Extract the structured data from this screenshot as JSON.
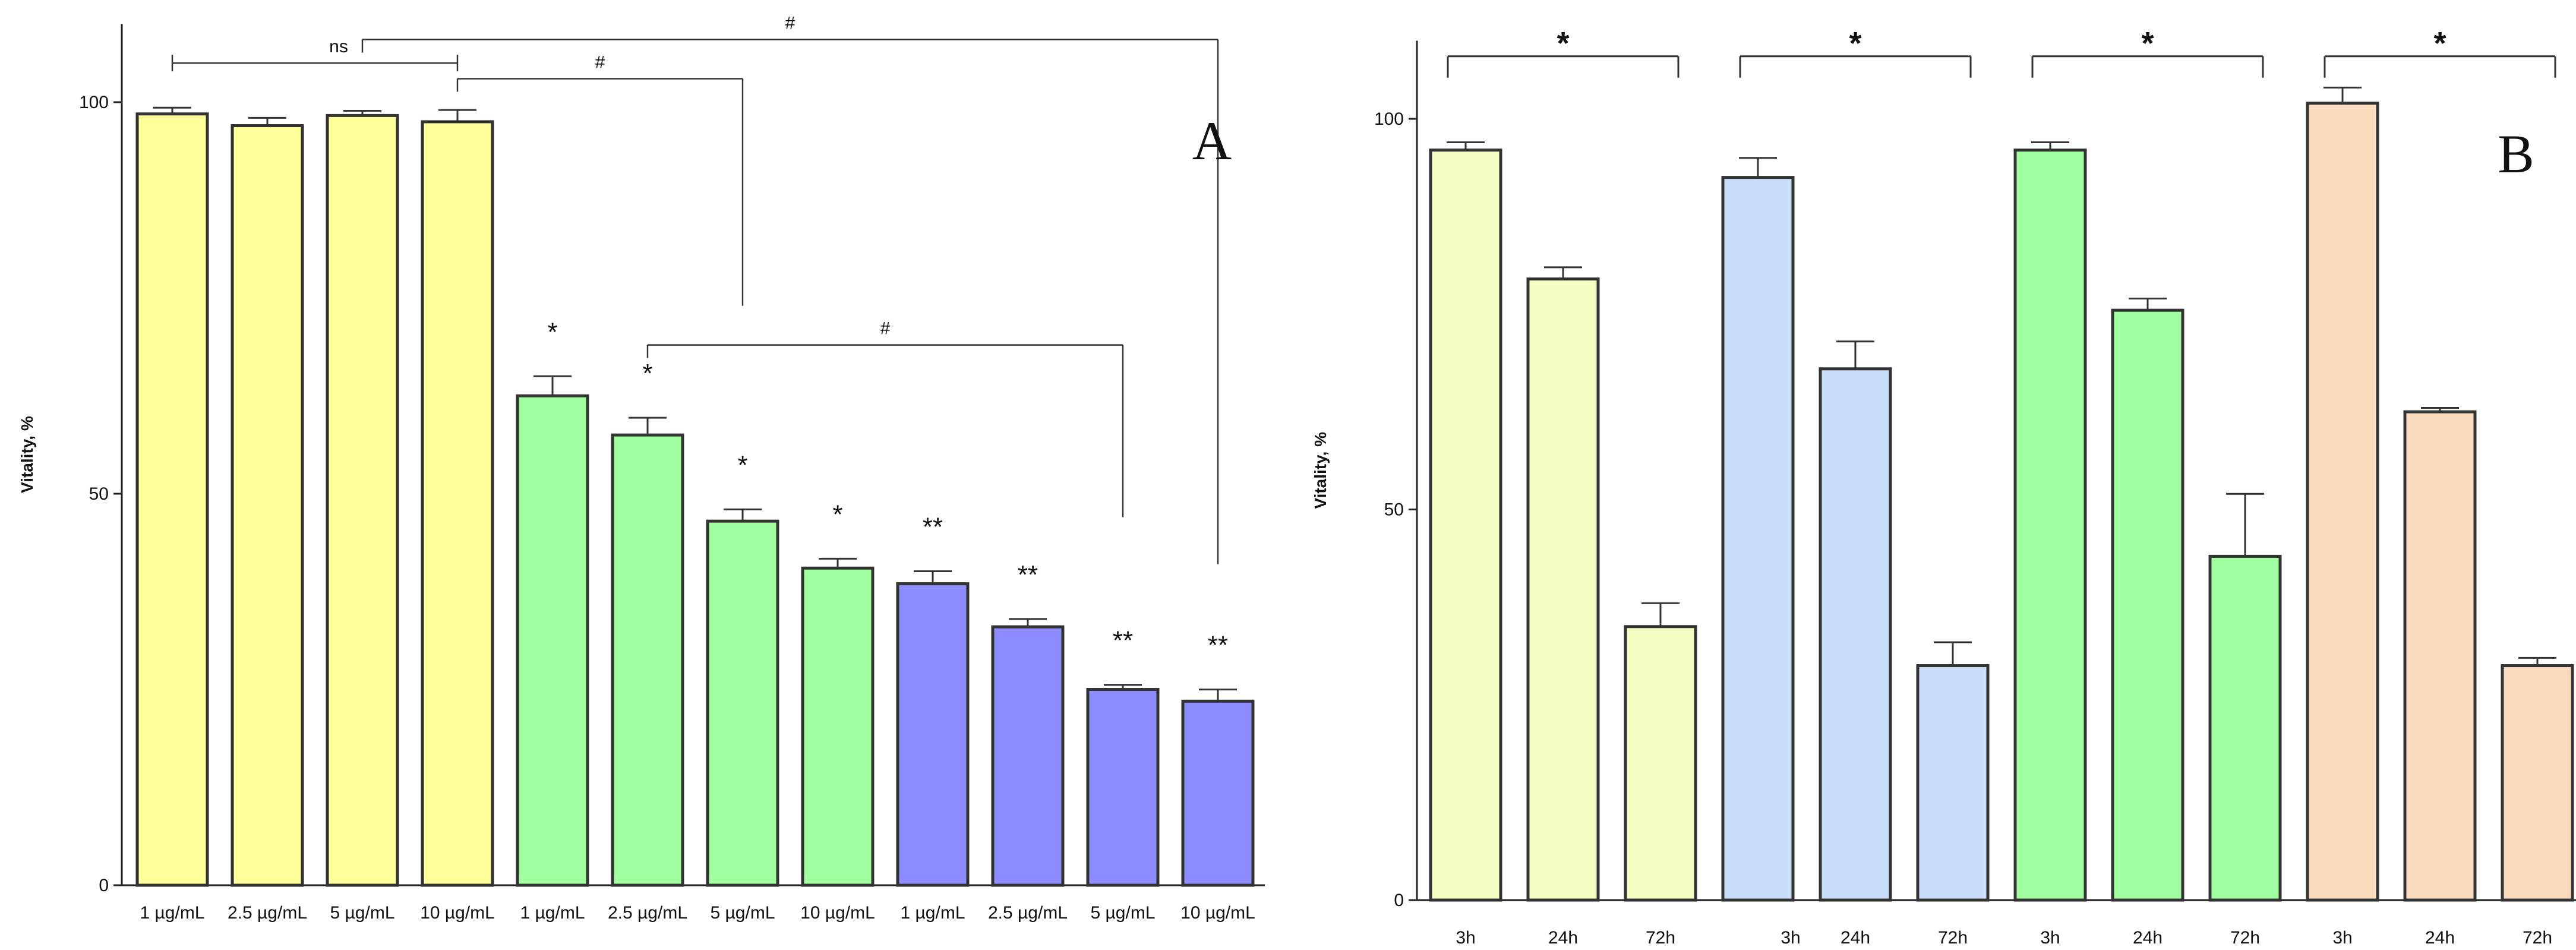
{
  "chart_data": [
    {
      "panel_label": "A",
      "type": "bar",
      "ylabel": "Vitality, %",
      "ylim": [
        0,
        110
      ],
      "yticks": [
        0,
        50,
        100
      ],
      "categories": [
        "1 µg/mL",
        "2.5 µg/mL",
        "5 µg/mL",
        "10 µg/mL",
        "1 µg/mL",
        "2.5 µg/mL",
        "5 µg/mL",
        "10 µg/mL",
        "1 µg/mL",
        "2.5 µg/mL",
        "5 µg/mL",
        "10 µg/mL"
      ],
      "values": [
        98.5,
        97,
        98.3,
        97.5,
        62.5,
        57.5,
        46.5,
        40.5,
        38.5,
        33,
        25,
        23.5
      ],
      "errors": [
        0.8,
        1,
        0.6,
        1.5,
        2.5,
        2.2,
        1.5,
        1.2,
        1.6,
        1,
        0.6,
        1.5
      ],
      "bar_colors": [
        "#ffff99",
        "#ffff99",
        "#ffff99",
        "#ffff99",
        "#a0ff9f",
        "#a0ff9f",
        "#a0ff9f",
        "#a0ff9f",
        "#8c8cff",
        "#8c8cff",
        "#8c8cff",
        "#8c8cff"
      ],
      "annotations": [
        "",
        "",
        "",
        "",
        "*",
        "*",
        "*",
        "*",
        "**",
        "**",
        "**",
        "**"
      ],
      "brackets": [
        {
          "label": "ns",
          "from": 0,
          "to": 3,
          "y": 105,
          "style": "span"
        },
        {
          "label": "#",
          "from": 3,
          "to": 6,
          "y": 103,
          "drop_to": 74,
          "style": "drop"
        },
        {
          "label": "#",
          "from": 5,
          "to": 10,
          "y": 69,
          "drop_to": 47,
          "style": "drop"
        },
        {
          "label": "#",
          "from": 2,
          "to": 11,
          "y": 108,
          "drop_to": 41,
          "style": "drop"
        }
      ]
    },
    {
      "panel_label": "B",
      "type": "bar",
      "ylabel": "Vitality, %",
      "ylim": [
        0,
        110
      ],
      "yticks": [
        0,
        50,
        100
      ],
      "categories": [
        "3h",
        "24h",
        "72h",
        "3h",
        "24h",
        "72h",
        "3h",
        "24h",
        "72h",
        "3h",
        "24h",
        "72h"
      ],
      "values": [
        96,
        79.5,
        35,
        92.5,
        68,
        30,
        96,
        75.5,
        44,
        102,
        62.5,
        30
      ],
      "errors": [
        1,
        1.5,
        3,
        2.5,
        3.5,
        3,
        1,
        1.5,
        8,
        2,
        0.5,
        1
      ],
      "bar_colors": [
        "#f4ffc4",
        "#f4ffc4",
        "#f4ffc4",
        "#c8ddf8",
        "#c8ddf8",
        "#c8ddf8",
        "#a0ff9f",
        "#a0ff9f",
        "#a0ff9f",
        "#fbdcbf",
        "#fbdcbf",
        "#fbdcbf"
      ],
      "brackets": [
        {
          "label": "*",
          "from": 0,
          "to": 2,
          "y": 108
        },
        {
          "label": "*",
          "from": 3,
          "to": 5,
          "y": 108
        },
        {
          "label": "*",
          "from": 6,
          "to": 8,
          "y": 108
        },
        {
          "label": "*",
          "from": 9,
          "to": 11,
          "y": 108
        }
      ]
    }
  ]
}
